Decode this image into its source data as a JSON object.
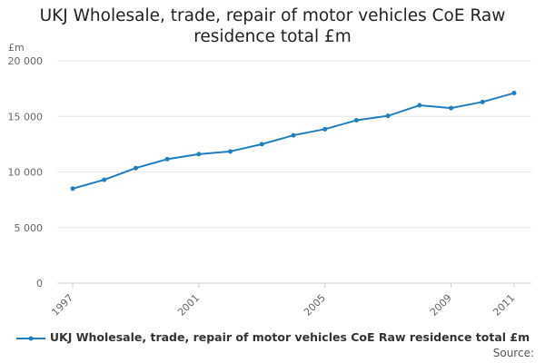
{
  "title_line1": "UKJ Wholesale, trade, repair of motor vehicles CoE Raw",
  "title_line2": "residence total £m",
  "y_unit": "£m",
  "source_label": "Source:",
  "colors": {
    "series": "#1f7fc1",
    "grid": "#e6e6e6",
    "axis": "#cccccc"
  },
  "chart_data": {
    "type": "line",
    "title": "UKJ Wholesale, trade, repair of motor vehicles CoE Raw residence total £m",
    "xlabel": "",
    "ylabel": "£m",
    "x": [
      1997,
      1998,
      1999,
      2000,
      2001,
      2002,
      2003,
      2004,
      2005,
      2006,
      2007,
      2008,
      2009,
      2010,
      2011
    ],
    "x_tick_labels": [
      "1997",
      "2001",
      "2005",
      "2009",
      "2011"
    ],
    "x_tick_values": [
      1997,
      2001,
      2005,
      2009,
      2011
    ],
    "y_ticks": [
      0,
      5000,
      10000,
      15000,
      20000
    ],
    "y_tick_labels": [
      "0",
      "5 000",
      "10 000",
      "15 000",
      "20 000"
    ],
    "ylim": [
      0,
      20000
    ],
    "grid": true,
    "legend_position": "bottom",
    "series": [
      {
        "name": "UKJ Wholesale, trade, repair of motor vehicles CoE Raw residence total £m",
        "values": [
          8500,
          9300,
          10350,
          11150,
          11600,
          11850,
          12500,
          13300,
          13850,
          14650,
          15050,
          16000,
          15750,
          16300,
          17100
        ]
      }
    ]
  }
}
